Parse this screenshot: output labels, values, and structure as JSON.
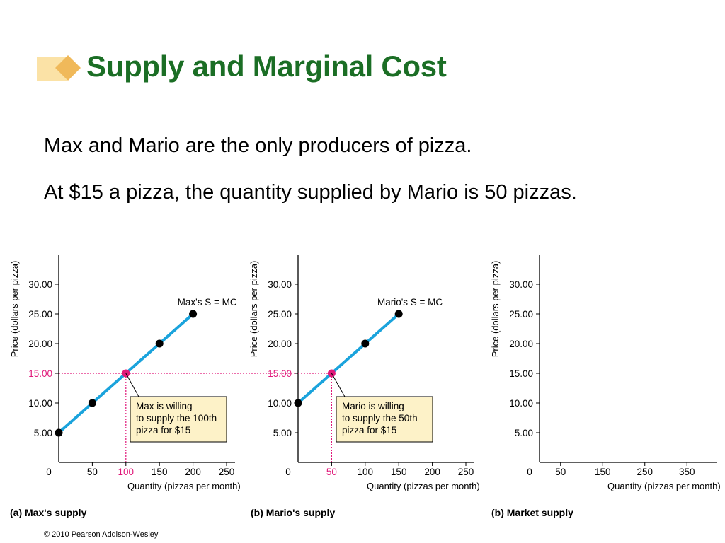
{
  "slide": {
    "title": "Supply and Marginal Cost",
    "line1": "Max and Mario are the only producers of pizza.",
    "line2": "At $15 a pizza, the quantity supplied by Mario is 50 pizzas.",
    "copyright": "© 2010 Pearson Addison-Wesley"
  },
  "colors": {
    "title": "#1b6e25",
    "supply_line": "#1aa3dc",
    "highlight": "#e0197a",
    "note_fill": "#fdf2c8",
    "deco_light": "#fbe2a6",
    "deco_dark": "#f0b95a"
  },
  "chart_data": [
    {
      "type": "line",
      "caption": "(a) Max's supply",
      "xlabel": "Quantity (pizzas per month)",
      "ylabel": "Price (dollars per pizza)",
      "xlim": [
        0,
        250
      ],
      "ylim": [
        0,
        30
      ],
      "xticks": [
        "0",
        "50",
        "100",
        "150",
        "200",
        "250"
      ],
      "xtick_values": [
        0,
        50,
        100,
        150,
        200,
        250
      ],
      "yticks": [
        "5.00",
        "10.00",
        "15.00",
        "20.00",
        "25.00",
        "30.00"
      ],
      "ytick_values": [
        5,
        10,
        15,
        20,
        25,
        30
      ],
      "highlight_x": "100",
      "highlight_y": "15.00",
      "series": [
        {
          "name": "Max's S = MC",
          "x": [
            0,
            50,
            100,
            150,
            200
          ],
          "y": [
            5,
            10,
            15,
            20,
            25
          ]
        }
      ],
      "highlight_point": [
        100,
        15
      ],
      "annotation": [
        "Max is willing",
        "to supply the 100th",
        "pizza for $15"
      ]
    },
    {
      "type": "line",
      "caption": "(b) Mario's supply",
      "xlabel": "Quantity (pizzas per month)",
      "ylabel": "Price (dollars per pizza)",
      "xlim": [
        0,
        250
      ],
      "ylim": [
        0,
        30
      ],
      "xticks": [
        "0",
        "50",
        "100",
        "150",
        "200",
        "250"
      ],
      "xtick_values": [
        0,
        50,
        100,
        150,
        200,
        250
      ],
      "yticks": [
        "5.00",
        "10.00",
        "15.00",
        "20.00",
        "25.00",
        "30.00"
      ],
      "ytick_values": [
        5,
        10,
        15,
        20,
        25,
        30
      ],
      "highlight_x": "50",
      "highlight_y": "15.00",
      "series": [
        {
          "name": "Mario's S = MC",
          "x": [
            0,
            50,
            100,
            150
          ],
          "y": [
            10,
            15,
            20,
            25
          ]
        }
      ],
      "highlight_point": [
        50,
        15
      ],
      "annotation": [
        "Mario is willing",
        "to supply the 50th",
        "pizza for $15"
      ]
    },
    {
      "type": "line",
      "caption": "(b) Market supply",
      "xlabel": "Quantity (pizzas per month)",
      "ylabel": "Price (dollars per pizza)",
      "xlim": [
        0,
        400
      ],
      "ylim": [
        0,
        30
      ],
      "xticks": [
        "0",
        "50",
        "150",
        "250",
        "350"
      ],
      "xtick_values": [
        0,
        50,
        150,
        250,
        350
      ],
      "yticks": [
        "5.00",
        "10.00",
        "15.00",
        "20.00",
        "25.00",
        "30.00"
      ],
      "ytick_values": [
        5,
        10,
        15,
        20,
        25,
        30
      ],
      "series": []
    }
  ]
}
